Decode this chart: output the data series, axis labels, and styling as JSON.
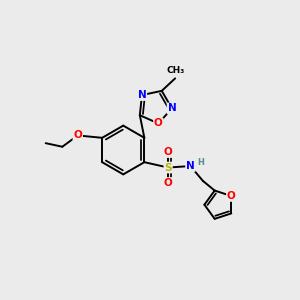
{
  "bg_color": "#ebebeb",
  "bond_color": "#000000",
  "atom_colors": {
    "O": "#ff0000",
    "N": "#0000ff",
    "S": "#b8b800",
    "C": "#000000",
    "H": "#5a8a8a"
  },
  "lw": 1.4,
  "fs": 7.5
}
